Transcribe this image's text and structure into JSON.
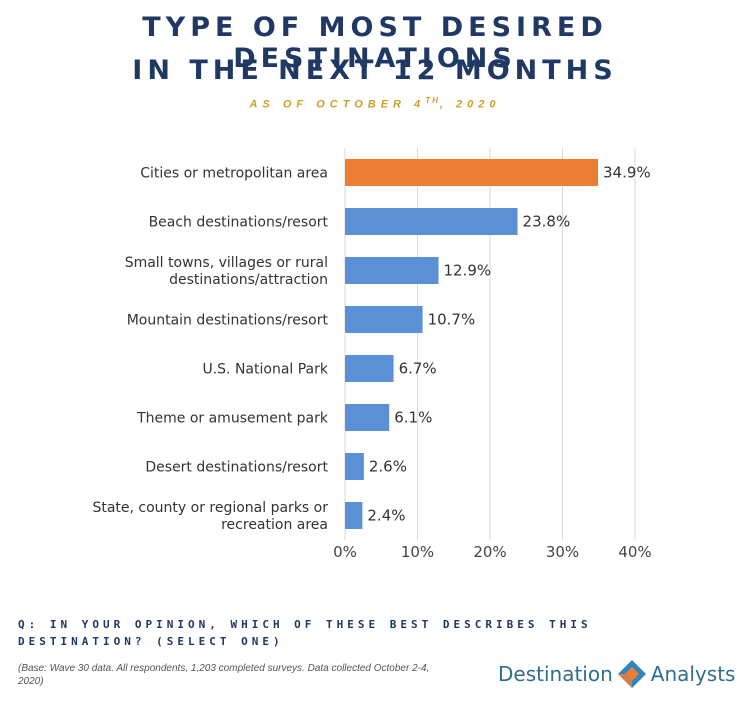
{
  "header": {
    "title_line1": "TYPE OF MOST DESIRED DESTINATIONS",
    "title_line2": "IN THE NEXT 12 MONTHS",
    "subtitle_pre": "AS OF OCTOBER 4",
    "subtitle_sup": "TH",
    "subtitle_post": ", 2020"
  },
  "chart_data": {
    "type": "bar",
    "orientation": "horizontal",
    "categories": [
      "Cities or metropolitan area",
      "Beach destinations/resort",
      "Small towns, villages or rural destinations/attraction",
      "Mountain destinations/resort",
      "U.S. National Park",
      "Theme or amusement park",
      "Desert destinations/resort",
      "State, county or regional parks or recreation area"
    ],
    "category_lines": [
      [
        "Cities or metropolitan area"
      ],
      [
        "Beach destinations/resort"
      ],
      [
        "Small towns, villages or rural",
        "destinations/attraction"
      ],
      [
        "Mountain destinations/resort"
      ],
      [
        "U.S. National Park"
      ],
      [
        "Theme or amusement park"
      ],
      [
        "Desert destinations/resort"
      ],
      [
        "State, county or regional parks or",
        "recreation area"
      ]
    ],
    "values": [
      34.9,
      23.8,
      12.9,
      10.7,
      6.7,
      6.1,
      2.6,
      2.4
    ],
    "value_labels": [
      "34.9%",
      "23.8%",
      "12.9%",
      "10.7%",
      "6.7%",
      "6.1%",
      "2.6%",
      "2.4%"
    ],
    "xlim": [
      0,
      40
    ],
    "ticks": [
      0,
      10,
      20,
      30,
      40
    ],
    "tick_labels": [
      "0%",
      "10%",
      "20%",
      "30%",
      "40%"
    ],
    "colors": {
      "highlight": "#ed7d31",
      "default": "#5b8fd6",
      "grid": "#d9d9d9"
    },
    "highlight_index": 0,
    "grid": true
  },
  "footer": {
    "question_line1": "Q: IN YOUR OPINION, WHICH OF THESE BEST DESCRIBES THIS",
    "question_line2": "DESTINATION? (SELECT ONE)",
    "base_note": "(Base: Wave 30 data. All respondents, 1,203 completed surveys. Data collected October 2-4, 2020)"
  },
  "logo": {
    "left_text": "Destination",
    "right_text": "Analysts",
    "icon": "diamond-logo-icon",
    "colors": {
      "text": "#2e6f8e",
      "orange": "#ed7d31",
      "blue": "#2e86c1"
    }
  }
}
